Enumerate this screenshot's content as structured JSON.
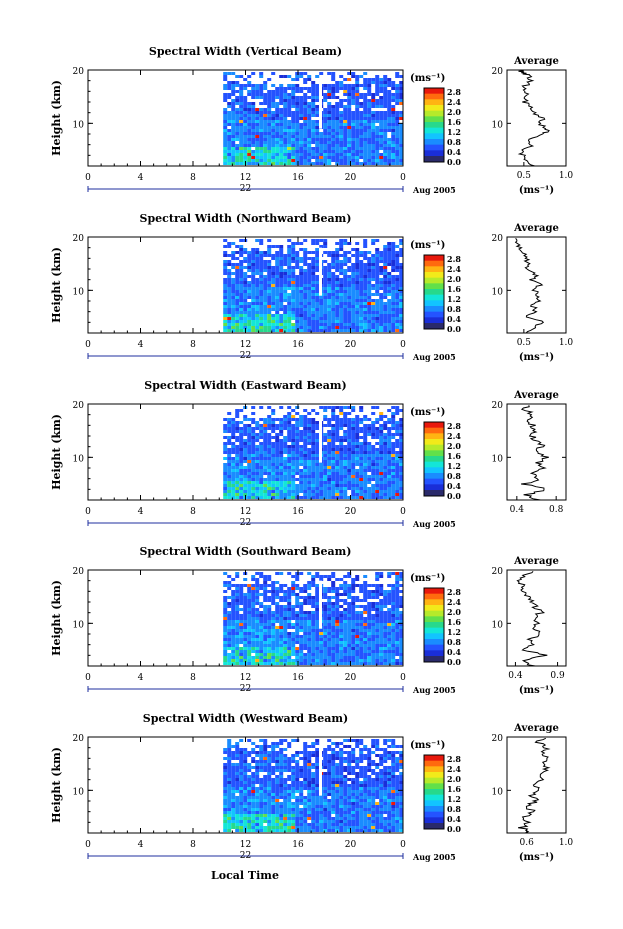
{
  "colors": {
    "background": "#ffffff",
    "axis": "#000000",
    "timebar": "#1f2f9f",
    "colorbar_bottom": "#2a2a6a",
    "scale": [
      "#1a2ed8",
      "#2453ff",
      "#1a8cff",
      "#12c4ff",
      "#13e6d8",
      "#27d98c",
      "#62e04a",
      "#b6ea2a",
      "#f2ea1a",
      "#ffb412",
      "#ff6a0e",
      "#e8180c"
    ]
  },
  "common": {
    "ylabel": "Height (km)",
    "y_ticks": [
      "20",
      "10"
    ],
    "x_ticks": [
      "0",
      "4",
      "8",
      "12",
      "16",
      "20",
      "0"
    ],
    "date_label": "22",
    "month_year": "Aug 2005",
    "units": "(ms⁻¹)",
    "avg_title": "Average",
    "xlabel_bottom": "Local Time"
  },
  "panels": [
    {
      "title": "Spectral Width (Vertical Beam)",
      "cbar_ticks": [
        "2.8",
        "2.4",
        "2.0",
        "1.6",
        "1.2",
        "0.8",
        "0.4",
        "0.0"
      ],
      "avg_ticks": [
        "0.5",
        "1.0"
      ]
    },
    {
      "title": "Spectral Width (Northward Beam)",
      "cbar_ticks": [
        "2.8",
        "2.4",
        "2.0",
        "1.6",
        "1.2",
        "0.8",
        "0.4",
        "0.0"
      ],
      "avg_ticks": [
        "0.5",
        "1.0"
      ]
    },
    {
      "title": "Spectral Width (Eastward Beam)",
      "cbar_ticks": [
        "2.8",
        "2.4",
        "2.0",
        "1.6",
        "1.2",
        "0.8",
        "0.4",
        "0.0"
      ],
      "avg_ticks": [
        "0.4",
        "0.8"
      ]
    },
    {
      "title": "Spectral Width (Southward Beam)",
      "cbar_ticks": [
        "2.8",
        "2.4",
        "2.0",
        "1.6",
        "1.2",
        "0.8",
        "0.4",
        "0.0"
      ],
      "avg_ticks": [
        "0.4",
        "0.9"
      ]
    },
    {
      "title": "Spectral Width (Westward Beam)",
      "cbar_ticks": [
        "2.8",
        "2.4",
        "2.0",
        "1.6",
        "1.2",
        "0.8",
        "0.4",
        "0.0"
      ],
      "avg_ticks": [
        "0.6",
        "1.0"
      ]
    }
  ],
  "chart_data": [
    {
      "type": "heatmap",
      "title": "Spectral Width (Vertical Beam)",
      "xlabel": "",
      "ylabel": "Height (km)",
      "xlim": [
        0,
        24
      ],
      "ylim": [
        2,
        20
      ],
      "data_start_hour": 10.3,
      "colorbar_range": [
        0.0,
        2.8
      ],
      "colorbar_units": "ms⁻¹"
    },
    {
      "type": "line",
      "title": "Average",
      "xlabel": "(ms⁻¹)",
      "ylabel": "",
      "xlim": [
        0.3,
        1.0
      ],
      "ylim": [
        2,
        20
      ],
      "x": [
        0.62,
        0.55,
        0.48,
        0.5,
        0.6,
        0.55,
        0.7,
        0.82,
        0.75,
        0.68,
        0.72,
        0.62,
        0.58,
        0.5,
        0.55,
        0.48,
        0.52,
        0.6,
        0.54,
        0.5,
        0.45,
        0.5,
        0.55,
        0.6
      ],
      "y": [
        2,
        3,
        4,
        5,
        6,
        7,
        8,
        8.5,
        9,
        10,
        11,
        12,
        13,
        14,
        15,
        16,
        17,
        18,
        19,
        19.5,
        20,
        20,
        20,
        20
      ]
    },
    {
      "type": "heatmap",
      "title": "Spectral Width (Northward Beam)",
      "xlabel": "",
      "ylabel": "Height (km)",
      "xlim": [
        0,
        24
      ],
      "ylim": [
        2,
        20
      ],
      "data_start_hour": 10.3,
      "colorbar_range": [
        0.0,
        2.8
      ],
      "colorbar_units": "ms⁻¹"
    },
    {
      "type": "line",
      "title": "Average",
      "xlabel": "(ms⁻¹)",
      "ylabel": "",
      "xlim": [
        0.3,
        1.0
      ],
      "ylim": [
        2,
        20
      ],
      "x": [
        0.55,
        0.6,
        0.75,
        0.5,
        0.65,
        0.6,
        0.7,
        0.66,
        0.62,
        0.68,
        0.6,
        0.64,
        0.55,
        0.58,
        0.52,
        0.48,
        0.45,
        0.4,
        0.38
      ],
      "y": [
        2,
        3,
        4,
        5,
        6,
        7,
        8,
        9,
        10,
        11,
        12,
        13,
        14,
        15,
        16,
        17,
        18,
        19,
        20
      ]
    },
    {
      "type": "heatmap",
      "title": "Spectral Width (Eastward Beam)",
      "xlabel": "",
      "ylabel": "Height (km)",
      "xlim": [
        0,
        24
      ],
      "ylim": [
        2,
        20
      ],
      "data_start_hour": 10.3,
      "colorbar_range": [
        0.0,
        2.8
      ],
      "colorbar_units": "ms⁻¹"
    },
    {
      "type": "line",
      "title": "Average",
      "xlabel": "",
      "ylabel": "",
      "xlim": [
        0.3,
        0.9
      ],
      "ylim": [
        2,
        20
      ],
      "x": [
        0.62,
        0.5,
        0.7,
        0.48,
        0.62,
        0.56,
        0.68,
        0.6,
        0.72,
        0.58,
        0.66,
        0.62,
        0.54,
        0.6,
        0.56,
        0.5,
        0.58,
        0.46,
        0.52
      ],
      "y": [
        2,
        3,
        4,
        5,
        6,
        7,
        8,
        9,
        10,
        11,
        12,
        13,
        14,
        15,
        16,
        17,
        18,
        19,
        20
      ]
    },
    {
      "type": "heatmap",
      "title": "Spectral Width (Southward Beam)",
      "xlabel": "",
      "ylabel": "Height (km)",
      "xlim": [
        0,
        24
      ],
      "ylim": [
        2,
        20
      ],
      "data_start_hour": 10.3,
      "colorbar_range": [
        0.0,
        2.8
      ],
      "colorbar_units": "ms⁻¹"
    },
    {
      "type": "line",
      "title": "Average",
      "xlabel": "(ms⁻¹)",
      "ylabel": "",
      "xlim": [
        0.3,
        1.0
      ],
      "ylim": [
        2,
        20
      ],
      "x": [
        0.6,
        0.48,
        0.75,
        0.5,
        0.62,
        0.58,
        0.7,
        0.6,
        0.66,
        0.62,
        0.7,
        0.64,
        0.6,
        0.55,
        0.5,
        0.48,
        0.45,
        0.5,
        0.62
      ],
      "y": [
        2,
        3,
        4,
        5,
        6,
        7,
        8,
        9,
        10,
        11,
        12,
        13,
        14,
        15,
        16,
        17,
        18,
        19,
        20
      ]
    },
    {
      "type": "heatmap",
      "title": "Spectral Width (Westward Beam)",
      "xlabel": "Local Time",
      "ylabel": "Height (km)",
      "xlim": [
        0,
        24
      ],
      "ylim": [
        2,
        20
      ],
      "data_start_hour": 10.3,
      "colorbar_range": [
        0.0,
        2.8
      ],
      "colorbar_units": "ms⁻¹"
    },
    {
      "type": "line",
      "title": "Average",
      "xlabel": "(ms⁻¹)",
      "ylabel": "",
      "xlim": [
        0.4,
        1.0
      ],
      "ylim": [
        2,
        20
      ],
      "x": [
        0.62,
        0.55,
        0.62,
        0.58,
        0.66,
        0.6,
        0.7,
        0.64,
        0.72,
        0.68,
        0.75,
        0.72,
        0.8,
        0.76,
        0.82,
        0.75,
        0.8,
        0.72,
        0.78
      ],
      "y": [
        2,
        3,
        4,
        5,
        6,
        7,
        8,
        9,
        10,
        11,
        12,
        13,
        14,
        15,
        16,
        17,
        18,
        19,
        20
      ]
    }
  ]
}
